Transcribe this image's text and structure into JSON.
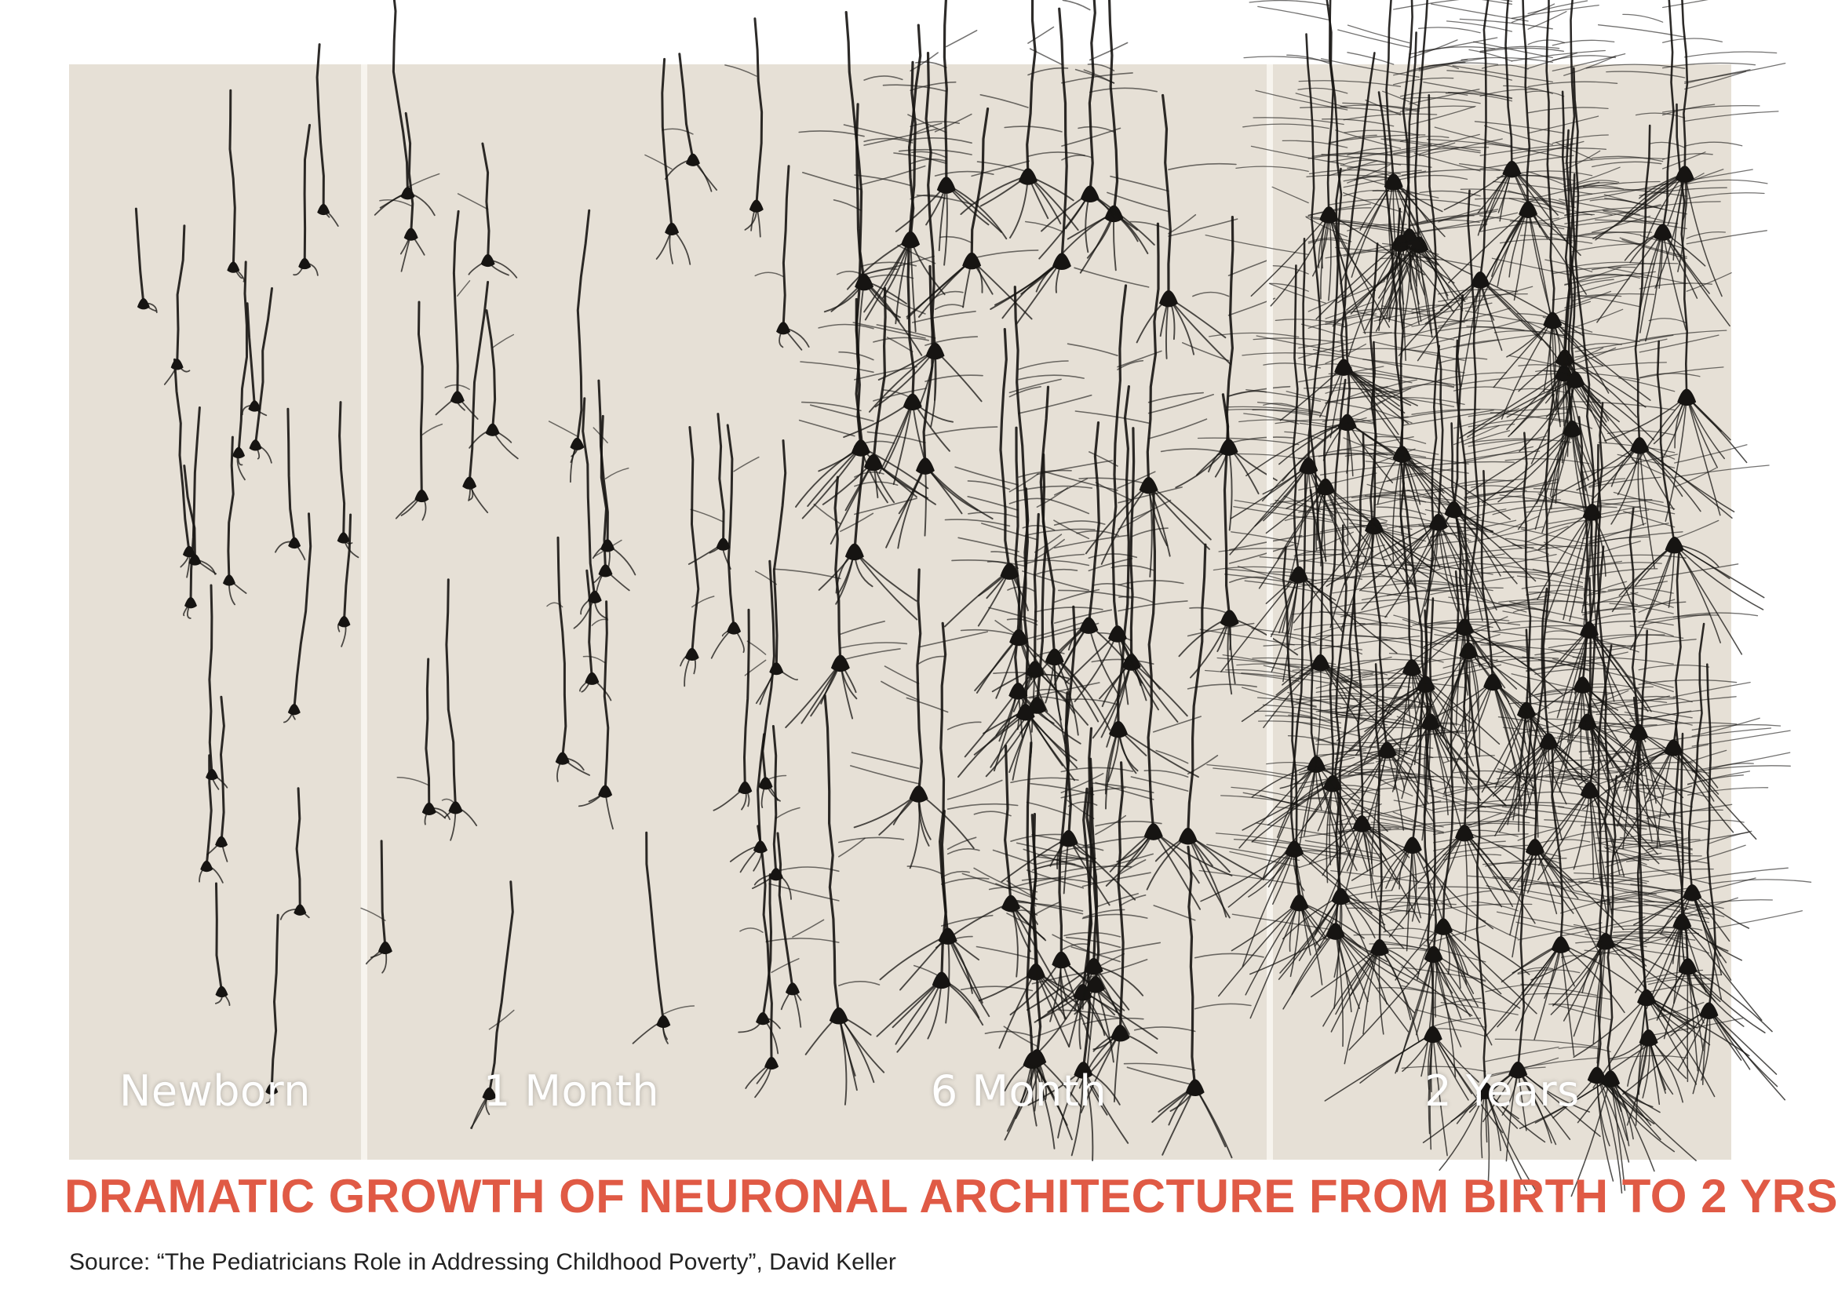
{
  "figure": {
    "panels": [
      {
        "label": "Newborn"
      },
      {
        "label": "1 Month"
      },
      {
        "label": "6 Month"
      },
      {
        "label": "2 Years"
      }
    ],
    "colors": {
      "background": "#e6e0d6",
      "ink": "#161412",
      "divider": "#f7f4ee"
    }
  },
  "caption": "DRAMATIC GROWTH OF NEURONAL ARCHITECTURE FROM BIRTH TO 2 YRS",
  "source": "Source: “The Pediatricians Role in Addressing Childhood Poverty”, David Keller",
  "colors": {
    "caption": "#e05a45",
    "source": "#222222"
  }
}
